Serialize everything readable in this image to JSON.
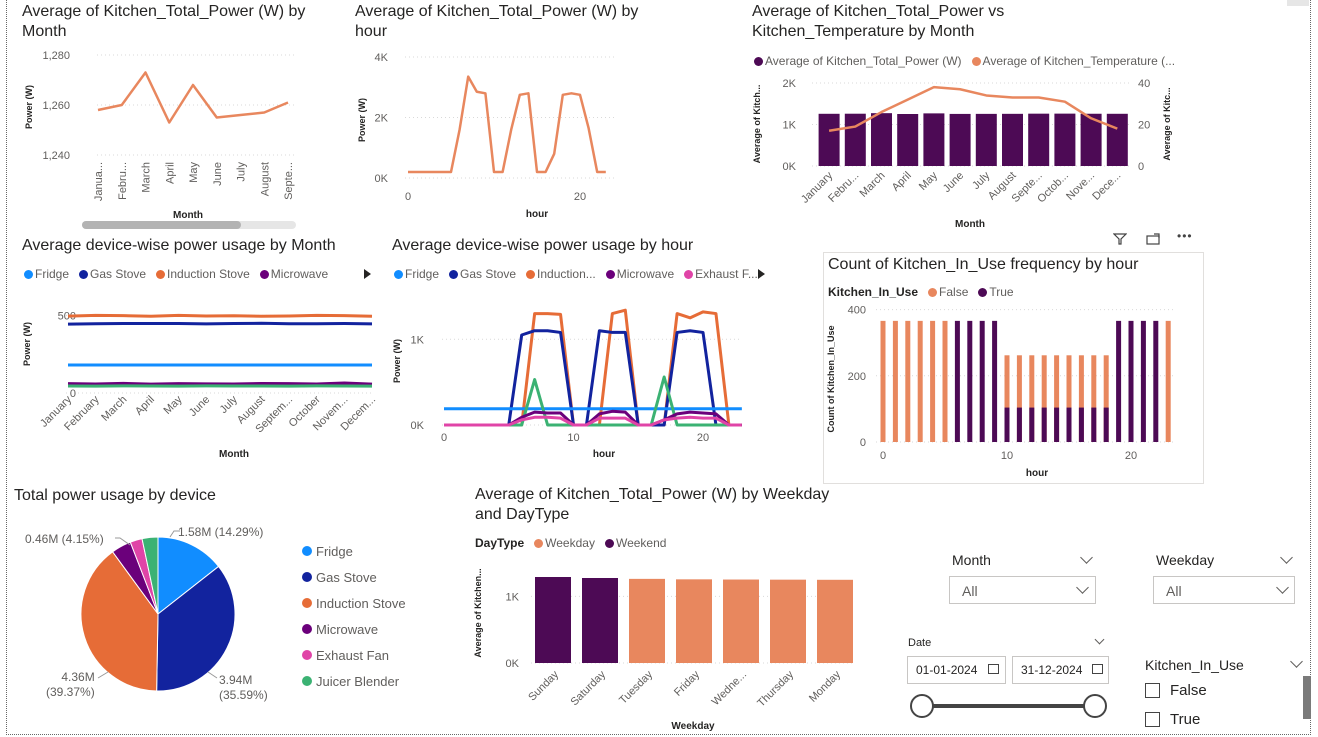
{
  "colors": {
    "orange": "#E8875E",
    "purple": "#4D0A55",
    "fridge": "#118DFF",
    "gas": "#12239E",
    "induction": "#E66C37",
    "microwave": "#6B007B",
    "exhaust": "#E044A7",
    "juicer": "#3BB273",
    "grid": "#d9d9d9",
    "axis": "#605e5c"
  },
  "chart_data": [
    {
      "id": "power_by_month",
      "type": "line",
      "title": "Average of Kitchen_Total_Power (W) by Month",
      "xlabel": "Month",
      "ylabel": "Power (W)",
      "categories": [
        "Janua...",
        "Febru...",
        "March",
        "April",
        "May",
        "June",
        "July",
        "August",
        "Septe..."
      ],
      "values": [
        1258,
        1260,
        1273,
        1253,
        1268,
        1255,
        1256,
        1257,
        1261
      ],
      "ylim": [
        1236,
        1284
      ],
      "yticks": [
        "1,240",
        "1,260",
        "1,280"
      ],
      "ytick_values": [
        1240,
        1260,
        1280
      ]
    },
    {
      "id": "power_by_hour",
      "type": "line",
      "title": "Average of Kitchen_Total_Power (W) by hour",
      "xlabel": "hour",
      "ylabel": "Power (W)",
      "x": [
        0,
        1,
        2,
        3,
        4,
        5,
        6,
        7,
        8,
        9,
        10,
        11,
        12,
        13,
        14,
        15,
        16,
        17,
        18,
        19,
        20,
        21,
        22,
        23
      ],
      "values": [
        200,
        200,
        200,
        200,
        200,
        200,
        1600,
        3350,
        2850,
        2800,
        200,
        200,
        1600,
        2750,
        2800,
        200,
        200,
        800,
        2750,
        2800,
        2750,
        1650,
        200,
        200
      ],
      "ylim": [
        0,
        4000
      ],
      "xticks": [
        "0",
        "20"
      ],
      "xtick_values": [
        0,
        20
      ],
      "yticks": [
        "0K",
        "2K",
        "4K"
      ],
      "ytick_values": [
        0,
        2000,
        4000
      ]
    },
    {
      "id": "power_vs_temp",
      "type": "bar",
      "title": "Average of Kitchen_Total_Power vs Kitchen_Temperature by Month",
      "xlabel": "Month",
      "ylabel": "Average of Kitch...",
      "y2label": "Average of Kitc...",
      "legend": [
        "Average of Kitchen_Total_Power (W)",
        "Average of Kitchen_Temperature (..."
      ],
      "categories": [
        "January",
        "Febru...",
        "March",
        "April",
        "May",
        "June",
        "July",
        "August",
        "Septe...",
        "Octob...",
        "Nove...",
        "Dece..."
      ],
      "bar_values": [
        1258,
        1260,
        1273,
        1253,
        1268,
        1255,
        1256,
        1257,
        1261,
        1262,
        1259,
        1258
      ],
      "line_values": [
        17,
        19,
        26,
        32,
        38,
        37,
        34,
        33,
        33,
        31,
        23,
        18
      ],
      "ylim": [
        0,
        2000
      ],
      "y2lim": [
        0,
        40
      ],
      "yticks": [
        "0K",
        "1K",
        "2K"
      ],
      "ytick_values": [
        0,
        1000,
        2000
      ],
      "y2ticks": [
        "0",
        "20",
        "40"
      ],
      "y2tick_values": [
        0,
        20,
        40
      ]
    },
    {
      "id": "device_by_month",
      "type": "line",
      "title": "Average device-wise power usage by Month",
      "xlabel": "Month",
      "ylabel": "Power (W)",
      "legend": [
        "Fridge",
        "Gas Stove",
        "Induction Stove",
        "Microwave"
      ],
      "categories": [
        "January",
        "February",
        "March",
        "April",
        "May",
        "June",
        "July",
        "August",
        "Septem...",
        "October",
        "Novem...",
        "Decem..."
      ],
      "series": [
        {
          "name": "Induction Stove",
          "values": [
            495,
            500,
            498,
            494,
            500,
            496,
            497,
            494,
            496,
            500,
            498,
            494
          ]
        },
        {
          "name": "Gas Stove",
          "values": [
            443,
            446,
            447,
            447,
            447,
            445,
            447,
            449,
            446,
            446,
            447,
            445
          ]
        },
        {
          "name": "Fridge",
          "values": [
            180,
            180,
            180,
            180,
            180,
            180,
            180,
            180,
            180,
            180,
            180,
            180
          ]
        },
        {
          "name": "Microwave",
          "values": [
            60,
            58,
            62,
            57,
            60,
            59,
            58,
            61,
            60,
            58,
            64,
            57
          ]
        },
        {
          "name": "Juicer Blender",
          "values": [
            45,
            44,
            46,
            45,
            44,
            46,
            45,
            45,
            44,
            46,
            45,
            44
          ]
        }
      ],
      "ylim": [
        0,
        560
      ],
      "yticks": [
        "0",
        "500"
      ],
      "ytick_values": [
        0,
        500
      ]
    },
    {
      "id": "device_by_hour",
      "type": "line",
      "title": "Average device-wise power usage by hour",
      "xlabel": "hour",
      "ylabel": "Power (W)",
      "legend": [
        "Fridge",
        "Gas Stove",
        "Induction...",
        "Microwave",
        "Exhaust F..."
      ],
      "x": [
        0,
        1,
        2,
        3,
        4,
        5,
        6,
        7,
        8,
        9,
        10,
        11,
        12,
        13,
        14,
        15,
        16,
        17,
        18,
        19,
        20,
        21,
        22,
        23
      ],
      "series": [
        {
          "name": "Induction Stove",
          "values": [
            0,
            0,
            0,
            0,
            0,
            0,
            0,
            1300,
            1300,
            1290,
            0,
            0,
            0,
            1300,
            1340,
            0,
            0,
            0,
            1300,
            1250,
            1320,
            1300,
            0,
            0
          ]
        },
        {
          "name": "Gas Stove",
          "values": [
            0,
            0,
            0,
            0,
            0,
            0,
            1050,
            1100,
            1100,
            1080,
            0,
            0,
            1100,
            1080,
            1080,
            0,
            0,
            0,
            1080,
            1100,
            1080,
            0,
            0,
            0
          ]
        },
        {
          "name": "Fridge",
          "values": [
            190,
            190,
            190,
            190,
            190,
            190,
            190,
            190,
            190,
            190,
            190,
            190,
            190,
            190,
            190,
            190,
            190,
            190,
            190,
            190,
            190,
            190,
            190,
            190
          ]
        },
        {
          "name": "Juicer Blender",
          "values": [
            0,
            0,
            0,
            0,
            0,
            0,
            0,
            530,
            0,
            0,
            0,
            0,
            0,
            0,
            0,
            0,
            0,
            560,
            0,
            0,
            0,
            0,
            0,
            0
          ]
        },
        {
          "name": "Microwave",
          "values": [
            0,
            0,
            0,
            0,
            0,
            0,
            90,
            150,
            140,
            140,
            0,
            0,
            130,
            160,
            150,
            0,
            0,
            60,
            130,
            150,
            140,
            130,
            0,
            0
          ]
        },
        {
          "name": "Exhaust Fan",
          "values": [
            0,
            0,
            0,
            0,
            0,
            0,
            60,
            90,
            90,
            80,
            0,
            0,
            80,
            80,
            80,
            0,
            0,
            60,
            80,
            90,
            80,
            80,
            0,
            0
          ]
        }
      ],
      "ylim": [
        0,
        1400
      ],
      "xticks": [
        "0",
        "10",
        "20"
      ],
      "xtick_values": [
        0,
        10,
        20
      ],
      "yticks": [
        "0K",
        "1K"
      ],
      "ytick_values": [
        0,
        1000
      ]
    },
    {
      "id": "inuse_by_hour",
      "type": "bar",
      "title": "Count of Kitchen_In_Use frequency by hour",
      "xlabel": "hour",
      "ylabel": "Count of Kitchen_In_Use",
      "legend_title": "Kitchen_In_Use",
      "legend": [
        "False",
        "True"
      ],
      "x": [
        0,
        1,
        2,
        3,
        4,
        5,
        6,
        7,
        8,
        9,
        10,
        11,
        12,
        13,
        14,
        15,
        16,
        17,
        18,
        19,
        20,
        21,
        22,
        23
      ],
      "series": [
        {
          "name": "False",
          "values": [
            366,
            366,
            366,
            366,
            366,
            366,
            0,
            0,
            0,
            0,
            262,
            262,
            262,
            262,
            262,
            262,
            262,
            262,
            262,
            0,
            0,
            0,
            0,
            366
          ]
        },
        {
          "name": "True",
          "values": [
            0,
            0,
            0,
            0,
            0,
            0,
            366,
            366,
            366,
            366,
            104,
            104,
            104,
            104,
            104,
            104,
            104,
            104,
            104,
            366,
            366,
            366,
            366,
            0
          ]
        }
      ],
      "ylim": [
        0,
        420
      ],
      "xticks": [
        "0",
        "10",
        "20"
      ],
      "xtick_values": [
        0,
        10,
        20
      ],
      "yticks": [
        "0",
        "200",
        "400"
      ],
      "ytick_values": [
        0,
        200,
        400
      ]
    },
    {
      "id": "power_by_device",
      "type": "pie",
      "title": "Total power usage by device",
      "labels": [
        "Fridge",
        "Gas Stove",
        "Induction Stove",
        "Microwave",
        "Exhaust Fan",
        "Juicer Blender"
      ],
      "values": [
        14.29,
        35.59,
        39.37,
        4.15,
        2.5,
        3.3
      ],
      "callouts": [
        {
          "text": "1.58M (14.29%)"
        },
        {
          "text": "3.94M",
          "text2": "(35.59%)"
        },
        {
          "text": "4.36M",
          "text2": "(39.37%)"
        },
        {
          "text": "0.46M (4.15%)"
        }
      ]
    },
    {
      "id": "power_by_weekday",
      "type": "bar",
      "title": "Average of Kitchen_Total_Power (W) by Weekday and DayType",
      "xlabel": "Weekday",
      "ylabel": "Average of Kitchen...",
      "legend_title": "DayType",
      "legend": [
        "Weekday",
        "Weekend"
      ],
      "categories": [
        "Sunday",
        "Saturday",
        "Tuesday",
        "Friday",
        "Wedne...",
        "Thursday",
        "Monday"
      ],
      "values": [
        1290,
        1275,
        1262,
        1255,
        1252,
        1250,
        1248
      ],
      "daytype": [
        "Weekend",
        "Weekend",
        "Weekday",
        "Weekday",
        "Weekday",
        "Weekday",
        "Weekday"
      ],
      "ylim": [
        0,
        1500
      ],
      "yticks": [
        "0K",
        "1K"
      ],
      "ytick_values": [
        0,
        1000
      ]
    }
  ],
  "filters": {
    "month": {
      "label": "Month",
      "value": "All"
    },
    "weekday": {
      "label": "Weekday",
      "value": "All"
    },
    "date": {
      "label": "Date",
      "start": "01-01-2024",
      "end": "31-12-2024"
    },
    "kitchen_in_use": {
      "label": "Kitchen_In_Use",
      "options": [
        "False",
        "True"
      ]
    }
  },
  "toolbar": {
    "more": "•••"
  }
}
